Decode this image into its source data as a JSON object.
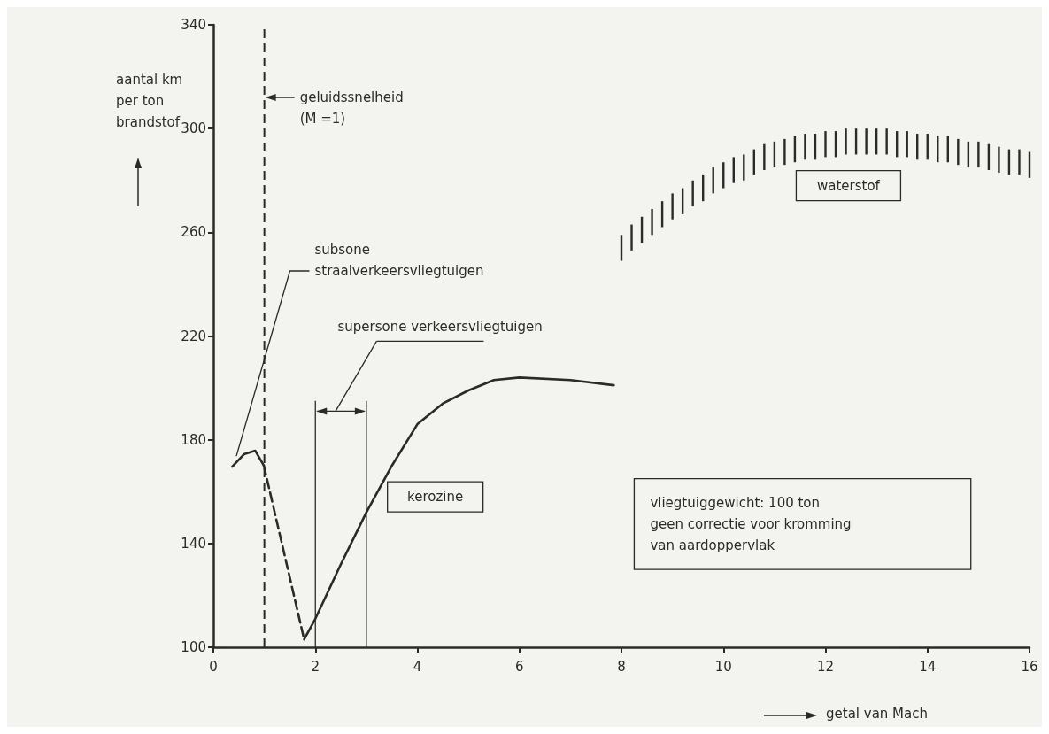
{
  "chart_data": {
    "type": "line",
    "xlabel": "getal van Mach",
    "ylabel": "aantal km\nper ton\nbrandstof",
    "xlim": [
      0,
      16
    ],
    "xticks": [
      0,
      2,
      4,
      6,
      8,
      10,
      12,
      14,
      16
    ],
    "ylim": [
      100,
      340
    ],
    "yticks": [
      100,
      140,
      180,
      220,
      260,
      300,
      340
    ],
    "grid": false,
    "legend": false,
    "marker": "none",
    "line_style": "solid",
    "series": [
      {
        "color": "#2a2a2a",
        "x": [
          0.37,
          0.6,
          0.82,
          0.99
        ],
        "values": [
          169.6,
          174.4,
          175.8,
          170
        ]
      },
      {
        "color": "#2a2a2a",
        "line_style": "dashed",
        "x": [
          0.99,
          1.78
        ],
        "values": [
          170,
          103
        ]
      },
      {
        "name": "kerozine",
        "color": "#2a2a2a",
        "x": [
          1.78,
          2.0,
          2.5,
          3.0,
          3.5,
          4.0,
          4.5,
          5.0,
          5.5,
          6.0,
          7.0,
          7.85
        ],
        "values": [
          103,
          111,
          132,
          152,
          170,
          186,
          194,
          199,
          203,
          204,
          203,
          201
        ]
      },
      {
        "name": "waterstof",
        "type": "bar",
        "color": "#2a2a2a",
        "x": [
          8.0,
          8.2,
          8.4,
          8.6,
          8.8,
          9.0,
          9.2,
          9.4,
          9.6,
          9.8,
          10.0,
          10.2,
          10.4,
          10.6,
          10.8,
          11.0,
          11.2,
          11.4,
          11.6,
          11.8,
          12.0,
          12.2,
          12.4,
          12.6,
          12.8,
          13.0,
          13.2,
          13.4,
          13.6,
          13.8,
          14.0,
          14.2,
          14.4,
          14.6,
          14.8,
          15.0,
          15.2,
          15.4,
          15.6,
          15.8,
          16.0
        ],
        "base": [
          249,
          253,
          256,
          259,
          262,
          265,
          267,
          270,
          272,
          275,
          277,
          279,
          280,
          282,
          284,
          285,
          286,
          287,
          288,
          288,
          289,
          289,
          290,
          290,
          290,
          290,
          290,
          289,
          289,
          288,
          288,
          287,
          287,
          286,
          285,
          285,
          284,
          283,
          282,
          282,
          281
        ],
        "values": [
          10,
          10,
          10,
          10,
          10,
          10,
          10,
          10,
          10,
          10,
          10,
          10,
          10,
          10,
          10,
          10,
          10,
          10,
          10,
          10,
          10,
          10,
          10,
          10,
          10,
          10,
          10,
          10,
          10,
          10,
          10,
          10,
          10,
          10,
          10,
          10,
          10,
          10,
          10,
          10,
          10
        ]
      }
    ],
    "ref_lines": [
      {
        "axis": "x",
        "value": 1,
        "label": "geluidssnelheid\n(M =1)",
        "line_style": "dashed",
        "color": "#2a2a2a"
      },
      {
        "axis": "x",
        "value": 2,
        "color": "#2a2a2a"
      },
      {
        "axis": "x",
        "value": 3,
        "color": "#2a2a2a"
      }
    ],
    "annotations": [
      {
        "text": "subsone\nstraalverkeersvliegtuigen",
        "x": 0.45,
        "y": 173.6
      },
      "supersone verkeersvliegtuigen",
      "vliegtuiggewicht: 100 ton\ngeen correctie voor kromming\nvan aardoppervlak"
    ]
  }
}
